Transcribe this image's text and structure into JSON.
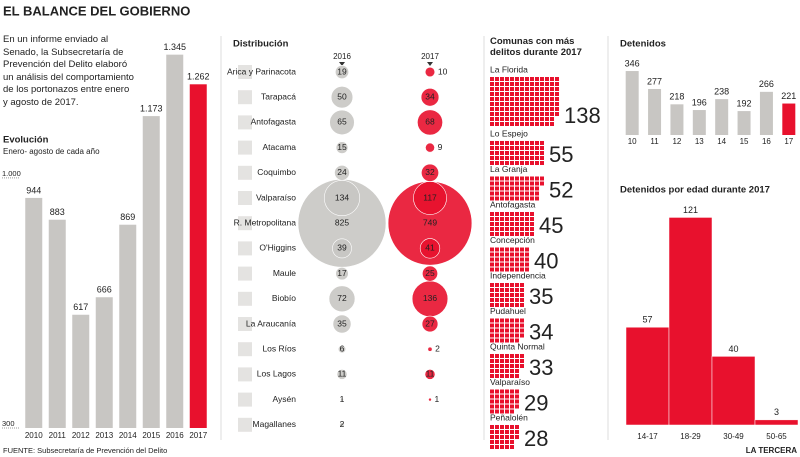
{
  "title": "EL BALANCE DEL GOBIERNO",
  "intro": "En un informe enviado al Senado, la Subsecretaría de Prevención del Delito elaboró un análisis del comportamiento de los portonazos entre enero y agosto de 2017.",
  "source": "FUENTE: Subsecretaría de Prevención del Delito",
  "brand": "LA TERCERA",
  "chart_data": [
    {
      "type": "bar",
      "title": "Evolución",
      "subtitle": "Enero- agosto de cada año",
      "categories": [
        "2010",
        "2011",
        "2012",
        "2013",
        "2014",
        "2015",
        "2016",
        "2017"
      ],
      "values": [
        944,
        883,
        617,
        666,
        869,
        1173,
        1345,
        1262
      ],
      "value_labels": [
        "944",
        "883",
        "617",
        "666",
        "869",
        "1.173",
        "1.345",
        "1.262"
      ],
      "colors": [
        "#c8c6c3",
        "#c8c6c3",
        "#c8c6c3",
        "#c8c6c3",
        "#c8c6c3",
        "#c8c6c3",
        "#c8c6c3",
        "#e8112d"
      ],
      "ylim": [
        300,
        1400
      ],
      "yticks": [
        300,
        {
          "value": 1000,
          "label": "1.000"
        }
      ]
    },
    {
      "type": "bubble",
      "title": "Distribución",
      "categories": [
        "Arica y Parinacota",
        "Tarapacá",
        "Antofagasta",
        "Atacama",
        "Coquimbo",
        "Valparaíso",
        "R. Metropolitana",
        "O'Higgins",
        "Maule",
        "Biobío",
        "La Araucanía",
        "Los Ríos",
        "Los Lagos",
        "Aysén",
        "Magallanes"
      ],
      "series": [
        {
          "name": "2016",
          "color": "#c8c6c3",
          "values": [
            19,
            50,
            65,
            15,
            24,
            134,
            825,
            39,
            17,
            72,
            35,
            6,
            11,
            1,
            2
          ]
        },
        {
          "name": "2017",
          "color": "#e8112d",
          "values": [
            10,
            34,
            68,
            9,
            32,
            117,
            749,
            41,
            25,
            136,
            27,
            2,
            11,
            1,
            null
          ]
        }
      ]
    },
    {
      "type": "pictogram",
      "title": "Comunas con más delitos durante 2017",
      "categories": [
        "La Florida",
        "Lo Espejo",
        "La Granja",
        "Antofagasta",
        "Concepción",
        "Independencia",
        "Pudahuel",
        "Quinta Normal",
        "Valparaíso",
        "Peñalolén"
      ],
      "values": [
        138,
        55,
        52,
        45,
        40,
        35,
        34,
        33,
        29,
        28
      ],
      "color": "#e8112d"
    },
    {
      "type": "bar",
      "title": "Detenidos",
      "categories": [
        "10",
        "11",
        "12",
        "13",
        "14",
        "15",
        "16",
        "17"
      ],
      "values": [
        346,
        277,
        218,
        196,
        238,
        192,
        266,
        221
      ],
      "colors": [
        "#c8c6c3",
        "#c8c6c3",
        "#c8c6c3",
        "#c8c6c3",
        "#c8c6c3",
        "#c8c6c3",
        "#c8c6c3",
        "#e8112d"
      ],
      "ylim": [
        100,
        400
      ]
    },
    {
      "type": "bar",
      "title": "Detenidos por edad durante 2017",
      "categories": [
        "14-17",
        "18-29",
        "30-49",
        "50-65"
      ],
      "values": [
        57,
        121,
        40,
        3
      ],
      "color": "#e8112d",
      "ylim": [
        0,
        130
      ]
    }
  ]
}
